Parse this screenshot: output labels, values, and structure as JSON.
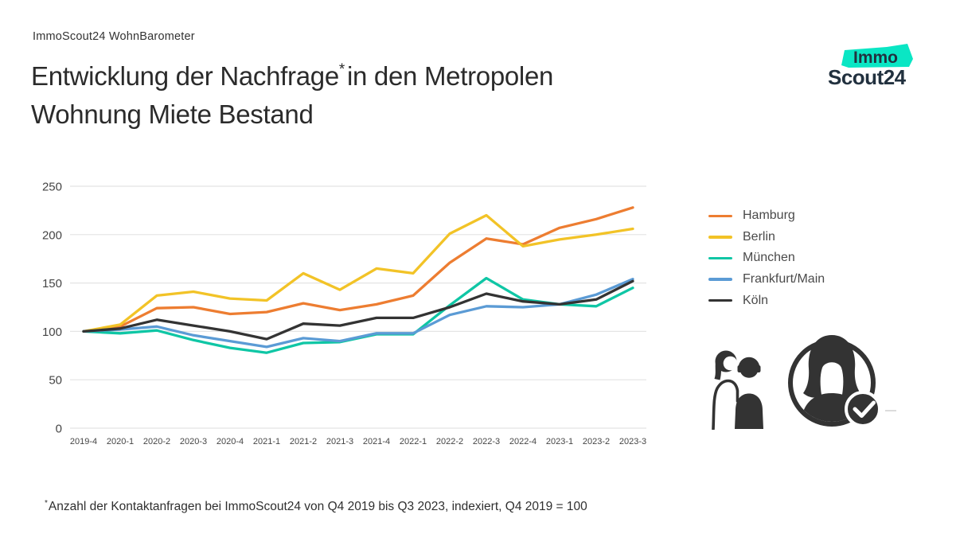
{
  "header": {
    "kicker": "ImmoScout24 WohnBarometer",
    "title_line1_pre": "Entwicklung der Nachfrage",
    "title_asterisk": "*",
    "title_line1_post": "in den Metropolen",
    "title_line2": "Wohnung Miete Bestand"
  },
  "logo": {
    "line1": "Immo",
    "line2": "Scout24",
    "teal": "#0ae6c4",
    "text_color": "#22313f"
  },
  "chart_data": {
    "type": "line",
    "title": "Entwicklung der Nachfrage in den Metropolen, Wohnung Miete Bestand",
    "x": [
      "2019-4",
      "2020-1",
      "2020-2",
      "2020-3",
      "2020-4",
      "2021-1",
      "2021-2",
      "2021-3",
      "2021-4",
      "2022-1",
      "2022-2",
      "2022-3",
      "2022-4",
      "2023-1",
      "2023-2",
      "2023-3"
    ],
    "series": [
      {
        "name": "Hamburg",
        "color": "#ed7d31",
        "values": [
          100,
          105,
          124,
          125,
          118,
          120,
          129,
          122,
          128,
          137,
          171,
          196,
          190,
          207,
          216,
          228
        ]
      },
      {
        "name": "Berlin",
        "color": "#f2c327",
        "values": [
          100,
          107,
          137,
          141,
          134,
          132,
          160,
          143,
          165,
          160,
          201,
          220,
          188,
          195,
          200,
          206
        ]
      },
      {
        "name": "München",
        "color": "#0fc6a5",
        "values": [
          100,
          98,
          101,
          91,
          83,
          78,
          88,
          89,
          97,
          97,
          127,
          155,
          133,
          128,
          126,
          145
        ]
      },
      {
        "name": "Frankfurt/Main",
        "color": "#5b9bd5",
        "values": [
          100,
          102,
          105,
          96,
          90,
          84,
          93,
          90,
          98,
          98,
          117,
          126,
          125,
          128,
          138,
          154
        ]
      },
      {
        "name": "Köln",
        "color": "#333333",
        "values": [
          100,
          103,
          112,
          106,
          100,
          92,
          108,
          106,
          114,
          114,
          125,
          139,
          131,
          128,
          133,
          152
        ]
      }
    ],
    "ylim": [
      0,
      250
    ],
    "yticks": [
      0,
      50,
      100,
      150,
      200,
      250
    ],
    "grid": true,
    "gridcolor": "#e4e4e4",
    "tick_color": "#454545",
    "legend_position": "right",
    "index_note": "Q4 2019 = 100"
  },
  "footnote": {
    "asterisk": "*",
    "text": "Anzahl der Kontaktanfragen bei ImmoScout24 von Q4 2019 bis Q3 2023, indexiert, Q4 2019 = 100"
  },
  "icons": {
    "left": "two-people-icon",
    "right": "person-check-circle-icon"
  }
}
